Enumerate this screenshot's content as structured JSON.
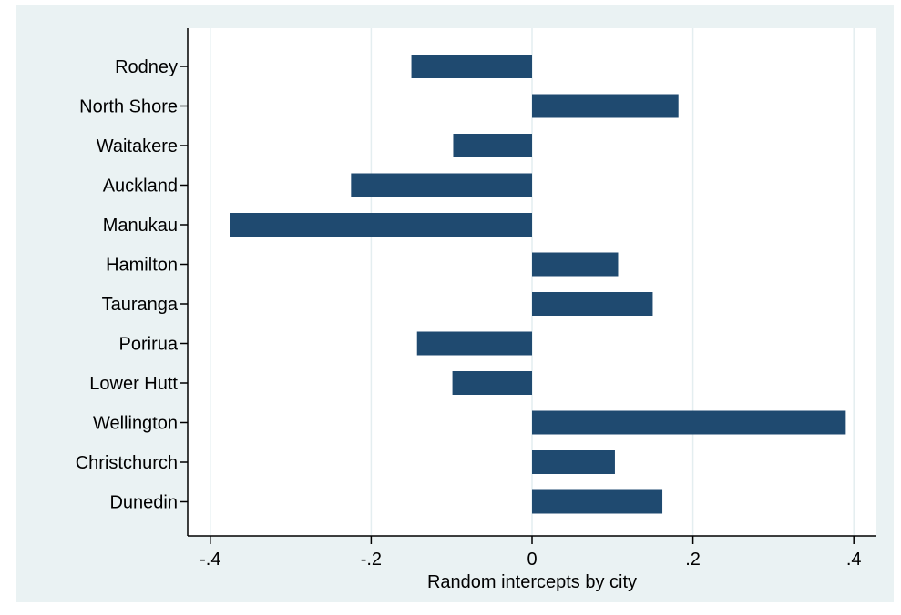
{
  "chart_data": {
    "type": "bar",
    "orientation": "horizontal",
    "categories": [
      "Rodney",
      "North Shore",
      "Waitakere",
      "Auckland",
      "Manukau",
      "Hamilton",
      "Tauranga",
      "Porirua",
      "Lower Hutt",
      "Wellington",
      "Christchurch",
      "Dunedin"
    ],
    "values": [
      -0.15,
      0.182,
      -0.098,
      -0.225,
      -0.375,
      0.107,
      0.15,
      -0.143,
      -0.099,
      0.39,
      0.103,
      0.162
    ],
    "xlabel": "Random intercepts by city",
    "ylabel": "",
    "title": "",
    "xlim": [
      -0.43,
      0.43
    ],
    "xticks": [
      -0.4,
      -0.2,
      0,
      0.2,
      0.4
    ],
    "xtick_labels": [
      "-.4",
      "-.2",
      "0",
      ".2",
      ".4"
    ],
    "grid": "vertical",
    "bar_color": "#1f4a70",
    "plot_background": "#ffffff",
    "outer_background": "#eaf2f3",
    "grid_color": "#e4eef0"
  }
}
